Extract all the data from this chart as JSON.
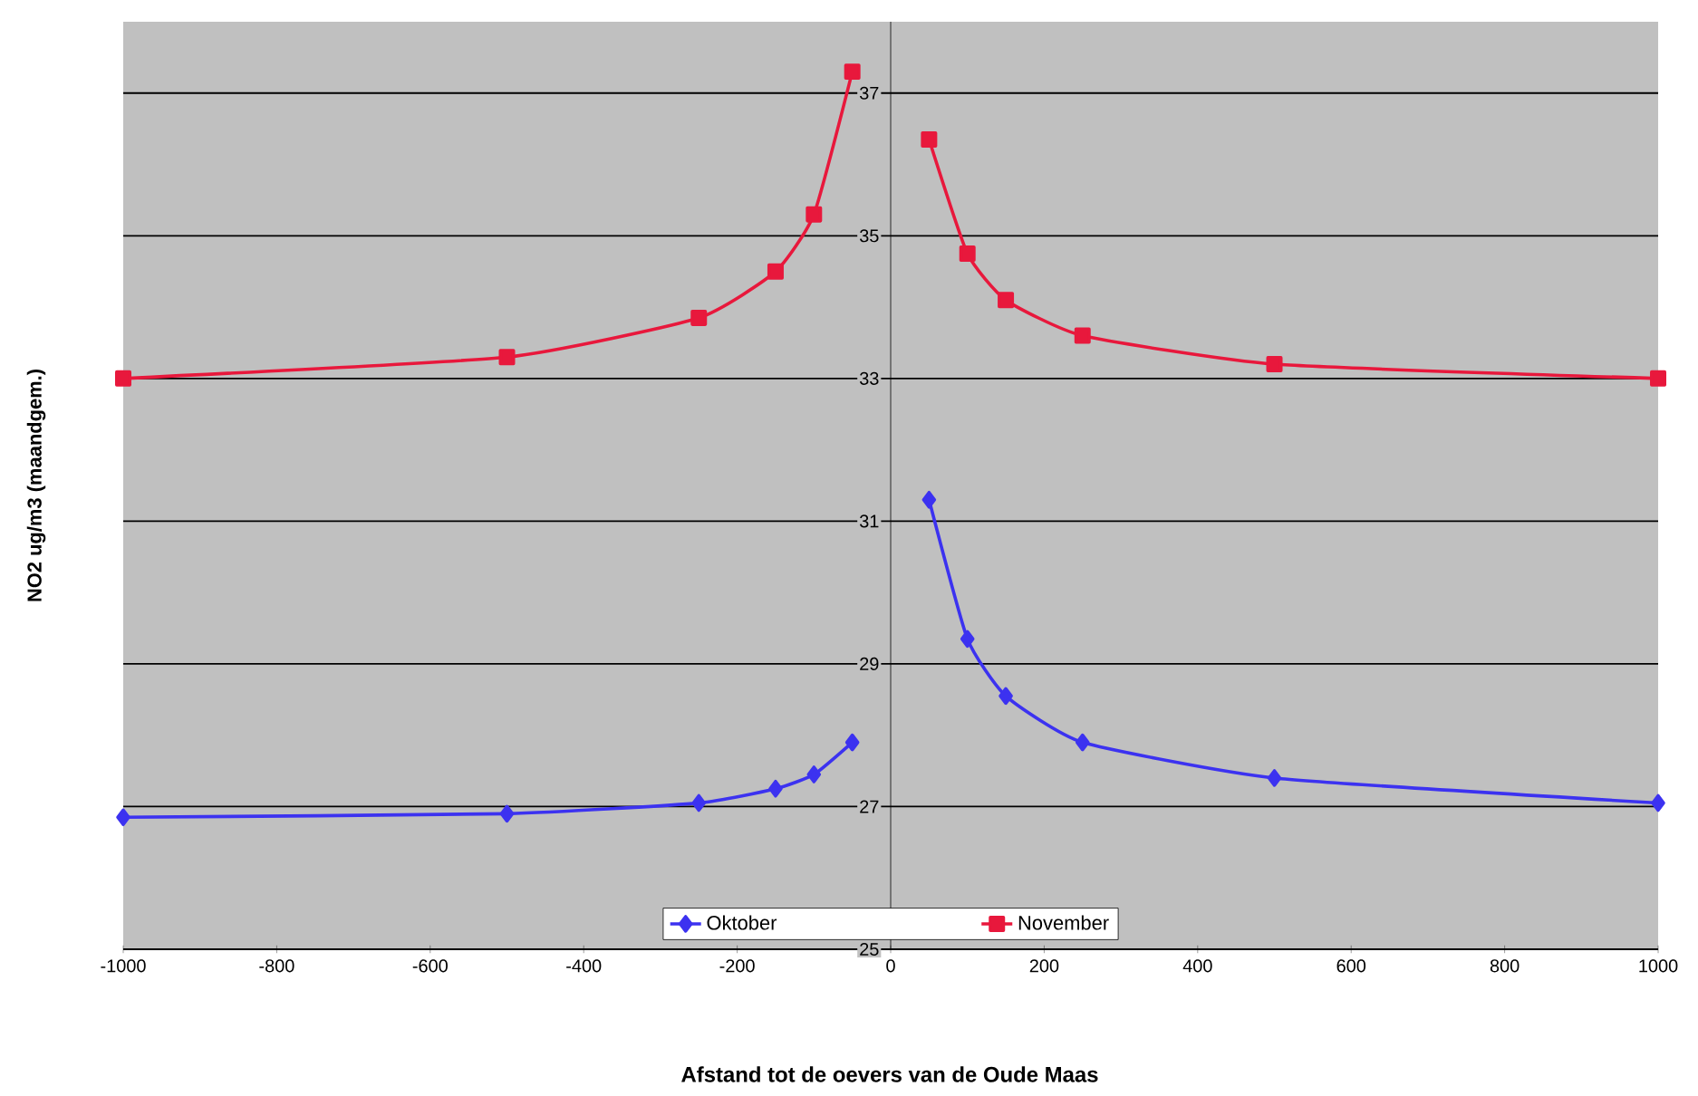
{
  "chart_data": {
    "type": "line",
    "xlabel": "Afstand tot de oevers van de Oude Maas",
    "ylabel": "NO2 ug/m3 (maandgem.)",
    "xlim": [
      -1000,
      1000
    ],
    "xticks": [
      -1000,
      -800,
      -600,
      -400,
      -200,
      0,
      200,
      400,
      600,
      800,
      1000
    ],
    "ylim": [
      25,
      38
    ],
    "yticks": [
      25,
      27,
      29,
      31,
      33,
      35,
      37
    ],
    "grid": "y",
    "legend": "bottom",
    "line_style": "solid",
    "series": [
      {
        "name": "Oktober",
        "color": "#3c32f0",
        "marker": "diamond",
        "x": [
          -1000,
          -500,
          -250,
          -150,
          -100,
          -50,
          0,
          50,
          100,
          150,
          250,
          500,
          1000
        ],
        "values": [
          26.85,
          26.9,
          27.05,
          27.25,
          27.45,
          27.9,
          null,
          31.3,
          29.35,
          28.55,
          27.9,
          27.4,
          27.05
        ]
      },
      {
        "name": "November",
        "color": "#e8183c",
        "marker": "square",
        "x": [
          -1000,
          -500,
          -250,
          -150,
          -100,
          -50,
          0,
          50,
          100,
          150,
          250,
          500,
          1000
        ],
        "values": [
          33.0,
          33.3,
          33.85,
          34.5,
          35.3,
          37.3,
          null,
          36.35,
          34.75,
          34.1,
          33.6,
          33.2,
          33.0
        ]
      }
    ]
  }
}
